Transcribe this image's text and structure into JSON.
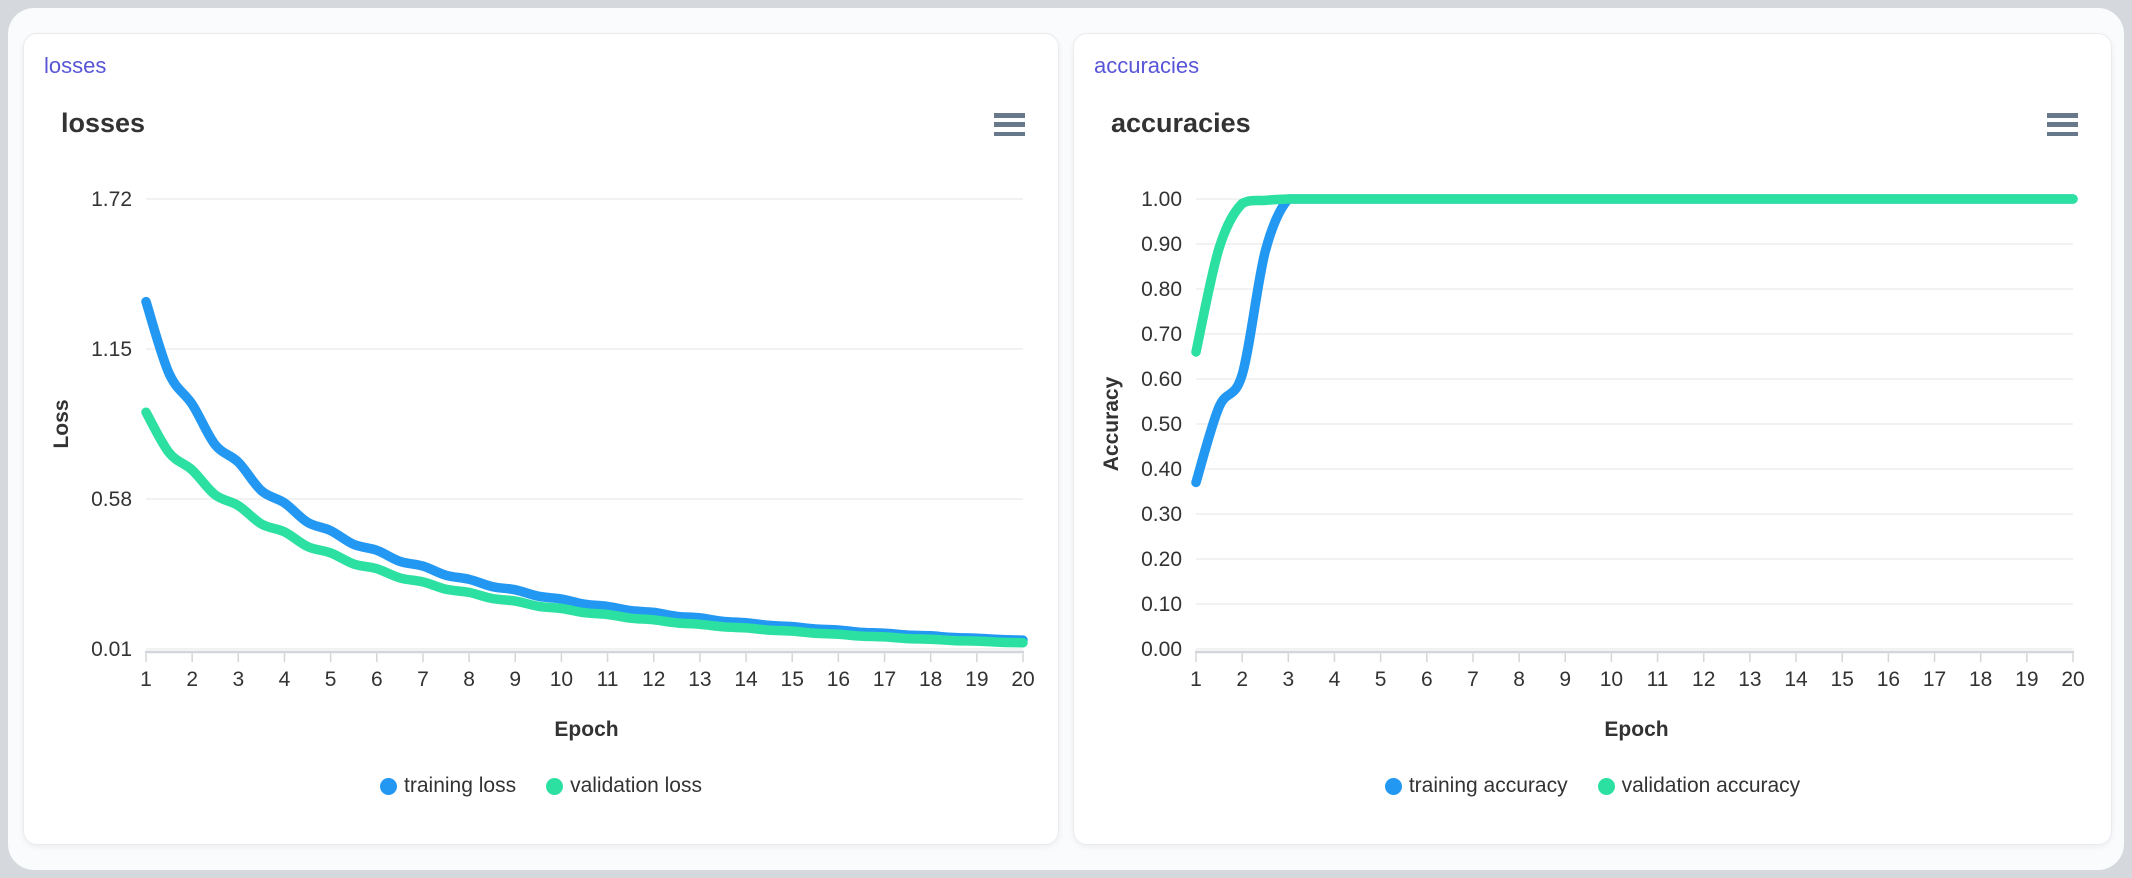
{
  "theme": {
    "outer_background": "#d5d9de",
    "surface_background": "#fafbfc",
    "card_background": "#ffffff",
    "card_border": "#e9ebef",
    "panel_label_color": "#5856d6",
    "title_color": "#333333",
    "grid_color": "#e6e6e6",
    "axis_color": "#d2d5d9",
    "tick_label_color": "#333333",
    "menu_icon_color": "#66788a",
    "series_blue": "#2398f2",
    "series_green": "#2ce0a2"
  },
  "cards": [
    {
      "panel_label": "losses"
    },
    {
      "panel_label": "accuracies"
    }
  ],
  "chart_data": [
    {
      "type": "line",
      "title": "losses",
      "xlabel": "Epoch",
      "ylabel": "Loss",
      "x": [
        1,
        2,
        3,
        4,
        5,
        6,
        7,
        8,
        9,
        10,
        11,
        12,
        13,
        14,
        15,
        16,
        17,
        18,
        19,
        20
      ],
      "xlim": [
        1,
        20
      ],
      "ylim": [
        0.01,
        1.72
      ],
      "yticks": [
        0.01,
        0.58,
        1.15,
        1.72
      ],
      "grid": "horizontal",
      "legend_position": "bottom",
      "series": [
        {
          "name": "training loss",
          "color": "#2398f2",
          "values": [
            1.33,
            0.94,
            0.72,
            0.565,
            0.46,
            0.385,
            0.325,
            0.275,
            0.235,
            0.2,
            0.172,
            0.149,
            0.128,
            0.11,
            0.095,
            0.082,
            0.07,
            0.06,
            0.051,
            0.044
          ]
        },
        {
          "name": "validation loss",
          "color": "#2ce0a2",
          "values": [
            0.91,
            0.69,
            0.555,
            0.455,
            0.375,
            0.315,
            0.265,
            0.225,
            0.192,
            0.164,
            0.141,
            0.121,
            0.104,
            0.09,
            0.078,
            0.066,
            0.056,
            0.047,
            0.04,
            0.034
          ]
        }
      ]
    },
    {
      "type": "line",
      "title": "accuracies",
      "xlabel": "Epoch",
      "ylabel": "Accuracy",
      "x": [
        1,
        2,
        3,
        4,
        5,
        6,
        7,
        8,
        9,
        10,
        11,
        12,
        13,
        14,
        15,
        16,
        17,
        18,
        19,
        20
      ],
      "xlim": [
        1,
        20
      ],
      "ylim": [
        0.0,
        1.0
      ],
      "yticks": [
        0.0,
        0.1,
        0.2,
        0.3,
        0.4,
        0.5,
        0.6,
        0.7,
        0.8,
        0.9,
        1.0
      ],
      "grid": "horizontal",
      "legend_position": "bottom",
      "series": [
        {
          "name": "training accuracy",
          "color": "#2398f2",
          "values": [
            0.37,
            0.61,
            1.0,
            1.0,
            1.0,
            1.0,
            1.0,
            1.0,
            1.0,
            1.0,
            1.0,
            1.0,
            1.0,
            1.0,
            1.0,
            1.0,
            1.0,
            1.0,
            1.0,
            1.0
          ]
        },
        {
          "name": "validation accuracy",
          "color": "#2ce0a2",
          "values": [
            0.66,
            0.99,
            1.0,
            1.0,
            1.0,
            1.0,
            1.0,
            1.0,
            1.0,
            1.0,
            1.0,
            1.0,
            1.0,
            1.0,
            1.0,
            1.0,
            1.0,
            1.0,
            1.0,
            1.0
          ]
        }
      ]
    }
  ]
}
